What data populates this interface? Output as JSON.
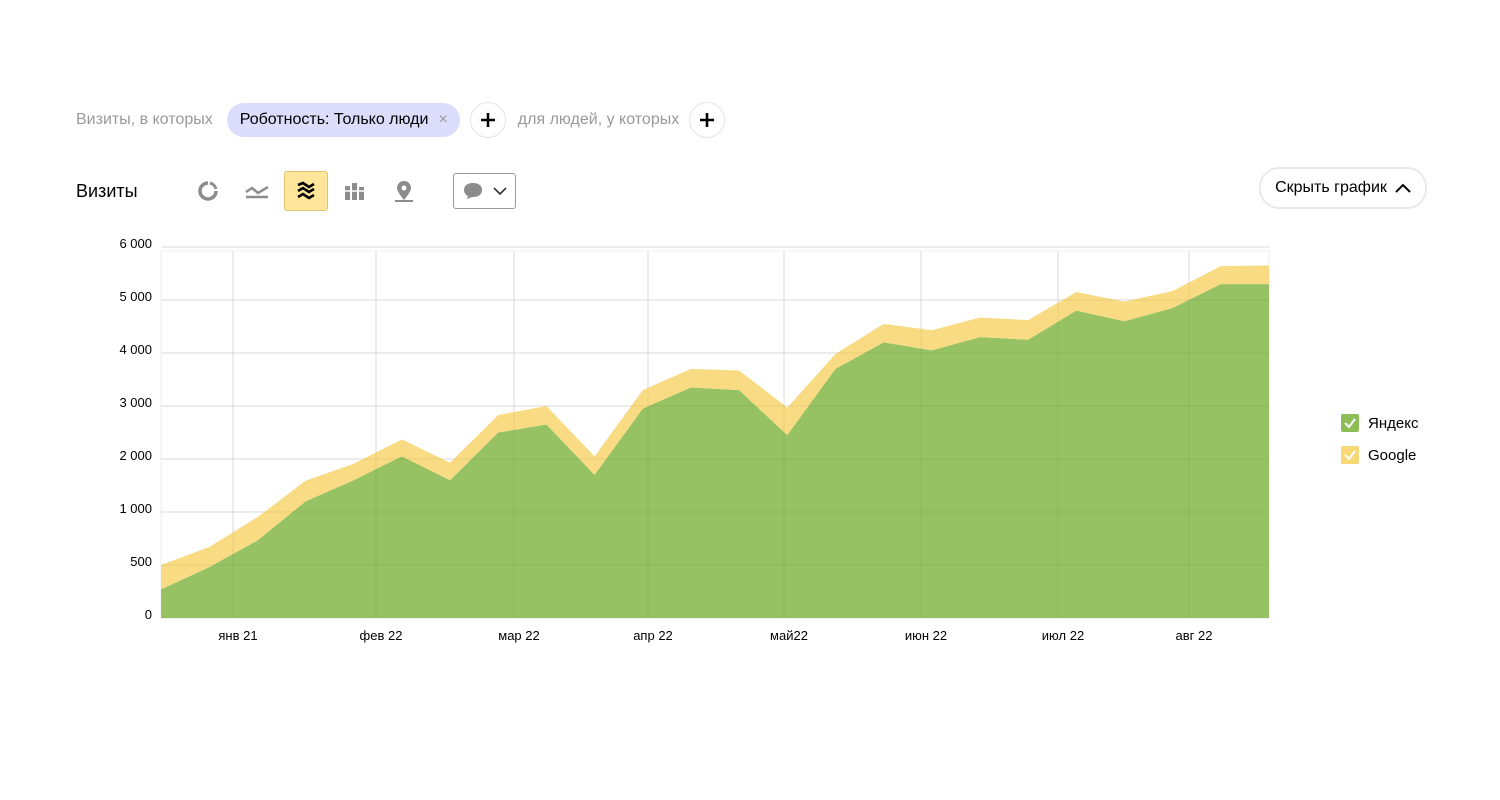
{
  "filter": {
    "prefix": "Визиты, в которых",
    "chip_label": "Роботность: Только люди",
    "chip_remove": "×",
    "middle": "для людей, у которых",
    "add_icon": "plus-icon"
  },
  "toolbar": {
    "title": "Визиты",
    "buttons": [
      "pie-chart-icon",
      "line-chart-icon",
      "stacked-area-icon",
      "bar-chart-icon",
      "map-pin-icon"
    ],
    "active_button": "stacked-area-icon",
    "comment_icon": "comment-icon"
  },
  "hide_chart_label": "Скрыть график",
  "legend": [
    {
      "label": "Яндекс",
      "color": "#8dbd57",
      "checked": true
    },
    {
      "label": "Google",
      "color": "#f7d877",
      "checked": true
    }
  ],
  "chart_data": {
    "type": "area",
    "stacked": true,
    "y_ticks": [
      {
        "value": 0,
        "label": "0"
      },
      {
        "value": 500,
        "label": "500"
      },
      {
        "value": 1000,
        "label": "1 000"
      },
      {
        "value": 2000,
        "label": "2 000"
      },
      {
        "value": 3000,
        "label": "3 000"
      },
      {
        "value": 4000,
        "label": "4 000"
      },
      {
        "value": 5000,
        "label": "5 000"
      },
      {
        "value": 6000,
        "label": "6 000"
      }
    ],
    "x_labels": [
      "янв 21",
      "фев 22",
      "мар 22",
      "апр 22",
      "май22",
      "июн 22",
      "июл 22",
      "авг 22"
    ],
    "grid": true,
    "legend_position": "right",
    "series": [
      {
        "name": "Яндекс",
        "color": "#8dbd57",
        "values": [
          270,
          480,
          730,
          1200,
          1600,
          2050,
          1600,
          2500,
          2650,
          1700,
          2950,
          3350,
          3300,
          2450,
          3700,
          4200,
          4050,
          4300,
          4250,
          4800,
          4600,
          4850,
          5300,
          5300
        ]
      },
      {
        "name": "Google",
        "color": "#f7d877",
        "values": [
          230,
          190,
          220,
          390,
          310,
          320,
          330,
          330,
          350,
          350,
          350,
          350,
          370,
          520,
          280,
          350,
          380,
          370,
          370,
          350,
          370,
          320,
          340,
          350
        ]
      }
    ]
  }
}
